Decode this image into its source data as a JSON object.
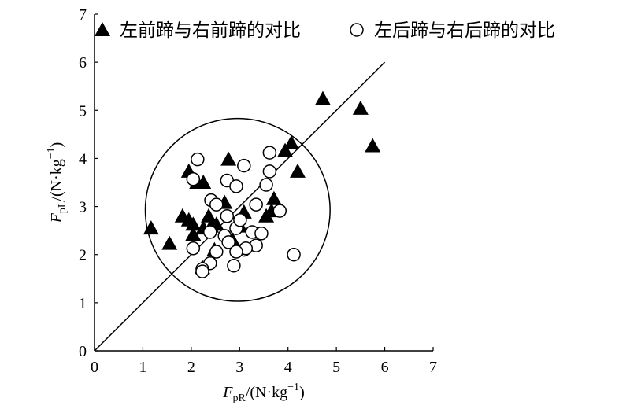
{
  "chart_data": {
    "type": "scatter",
    "legend_position": "top",
    "xlabel": {
      "base": "F",
      "sub": "pR",
      "unit": "/(N·kg",
      "sup": "−1",
      "close": ")"
    },
    "ylabel": {
      "base": "F",
      "sub": "pL",
      "unit": "/(N·kg",
      "sup": "−1",
      "close": ")"
    },
    "xlim": [
      0,
      7
    ],
    "ylim": [
      0,
      7
    ],
    "xticks": [
      0,
      1,
      2,
      3,
      4,
      5,
      6,
      7
    ],
    "yticks": [
      0,
      1,
      2,
      3,
      4,
      5,
      6,
      7
    ],
    "reference_line": {
      "x": [
        0,
        6
      ],
      "y": [
        0,
        6
      ],
      "color": "#000000"
    },
    "circle": {
      "cx": 2.96,
      "cy": 2.93,
      "rx": 1.91,
      "ry": 1.9,
      "color": "#000000"
    },
    "series": [
      {
        "name": "左前蹄与右前蹄的对比",
        "marker": "triangle",
        "color": "#000000",
        "x": [
          1.17,
          1.55,
          1.95,
          2.12,
          2.25,
          1.82,
          1.95,
          2.04,
          2.04,
          2.25,
          2.36,
          2.41,
          2.52,
          2.48,
          2.23,
          2.69,
          2.77,
          3.09,
          3.55,
          3.66,
          3.71,
          3.94,
          4.07,
          4.2,
          4.72,
          5.5,
          5.75,
          3.01,
          2.85
        ],
        "values": [
          2.55,
          2.23,
          3.73,
          3.5,
          3.5,
          2.8,
          2.72,
          2.63,
          2.42,
          2.55,
          2.8,
          2.59,
          2.63,
          2.1,
          1.73,
          3.08,
          3.98,
          2.88,
          2.8,
          2.91,
          3.16,
          4.16,
          4.32,
          3.73,
          5.24,
          5.04,
          4.26,
          2.59,
          2.31
        ]
      },
      {
        "name": "左后蹄与右后蹄的对比",
        "marker": "circle",
        "color": "#000000",
        "x": [
          2.13,
          2.04,
          2.41,
          2.52,
          2.74,
          2.93,
          3.09,
          3.62,
          3.62,
          3.55,
          3.34,
          3.83,
          2.74,
          2.93,
          2.39,
          2.69,
          2.77,
          3.09,
          3.26,
          3.45,
          3.34,
          3.13,
          2.93,
          2.52,
          2.04,
          2.39,
          2.23,
          2.23,
          2.88,
          4.12,
          3.01
        ],
        "values": [
          3.98,
          3.57,
          3.13,
          3.04,
          3.54,
          3.42,
          3.85,
          4.12,
          3.73,
          3.45,
          3.04,
          2.91,
          2.8,
          2.55,
          2.47,
          2.39,
          2.26,
          2.1,
          2.47,
          2.44,
          2.19,
          2.13,
          2.06,
          2.06,
          2.13,
          1.82,
          1.7,
          1.65,
          1.77,
          2.0,
          2.72
        ]
      }
    ]
  }
}
